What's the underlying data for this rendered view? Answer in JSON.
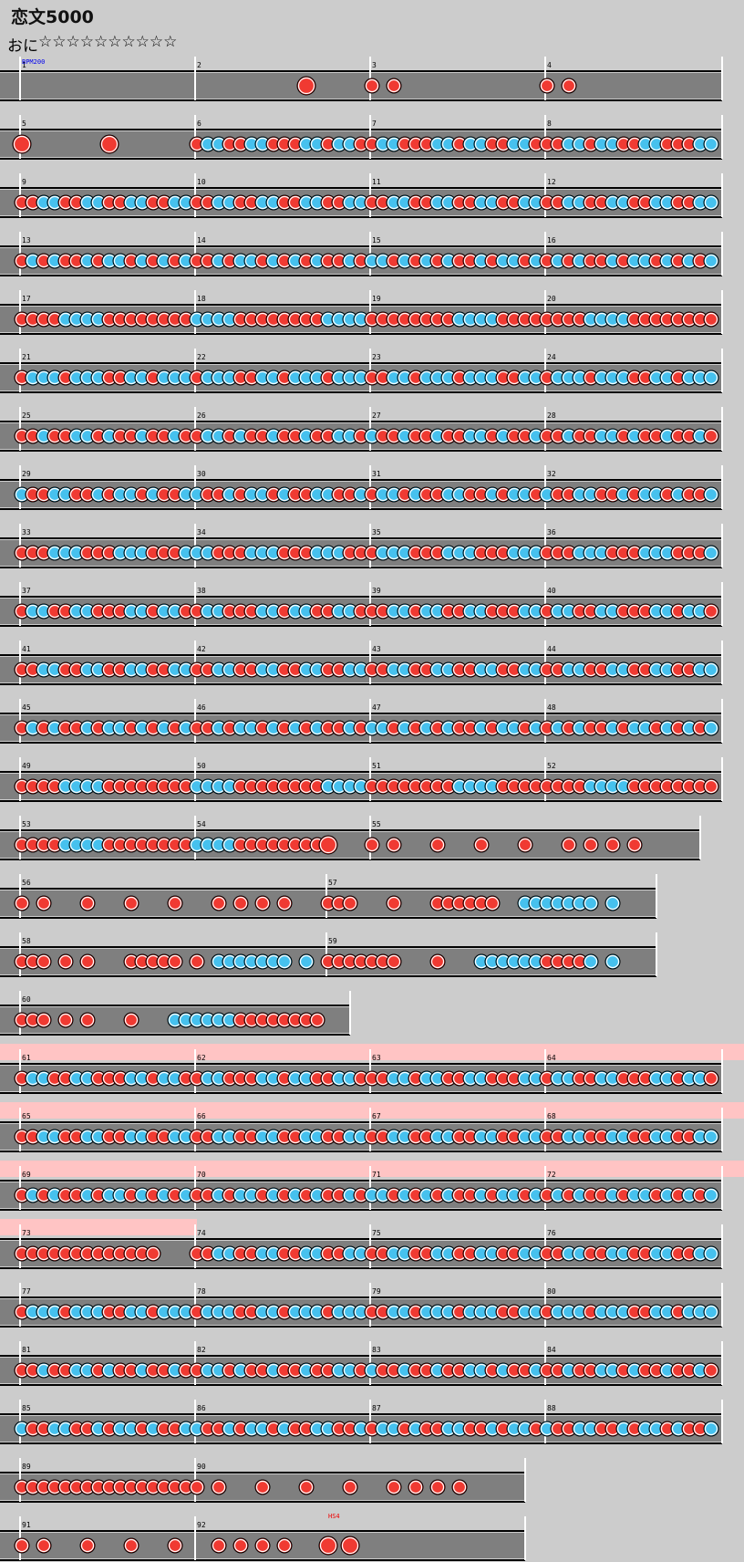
{
  "song": {
    "title": "恋文5000",
    "difficulty": "おに",
    "stars": "☆☆☆☆☆☆☆☆☆☆"
  },
  "colors": {
    "background": "#cccccc",
    "lane": "#7f7f7f",
    "lane_line": "#000000",
    "barline": "#ffffff",
    "gogo_band": "#ffc4c4",
    "don": "#f03a32",
    "ka": "#46c1ee",
    "note_outline": "#ffffff",
    "bpm_label": "#0000ee",
    "hs_label": "#ee0000",
    "measure_number": "#000000"
  },
  "chart_data": {
    "type": "taiko-score",
    "title": "恋文5000",
    "course": "おに",
    "level_stars": 10,
    "measure_range": [
      1,
      92
    ],
    "total_measures": 92,
    "annotations": [
      {
        "measure": 1,
        "text": "BPM200",
        "kind": "bpm"
      },
      {
        "measure": 92,
        "text": "HS4",
        "kind": "scroll"
      }
    ],
    "rows": [
      {
        "measures": [
          "1",
          "2",
          "3",
          "4"
        ],
        "gogo": false
      },
      {
        "measures": [
          "5",
          "6",
          "7",
          "8"
        ],
        "gogo": false
      },
      {
        "measures": [
          "9",
          "10",
          "11",
          "12"
        ],
        "gogo": false
      },
      {
        "measures": [
          "13",
          "14",
          "15",
          "16"
        ],
        "gogo": false
      },
      {
        "measures": [
          "17",
          "18",
          "19",
          "20"
        ],
        "gogo": false
      },
      {
        "measures": [
          "21",
          "22",
          "23",
          "24"
        ],
        "gogo": false
      },
      {
        "measures": [
          "25",
          "26",
          "27",
          "28"
        ],
        "gogo": false
      },
      {
        "measures": [
          "29",
          "30",
          "31",
          "32"
        ],
        "gogo": false
      },
      {
        "measures": [
          "33",
          "34",
          "35",
          "36"
        ],
        "gogo": false
      },
      {
        "measures": [
          "37",
          "38",
          "39",
          "40"
        ],
        "gogo": false
      },
      {
        "measures": [
          "41",
          "42",
          "43",
          "44"
        ],
        "gogo": false
      },
      {
        "measures": [
          "45",
          "46",
          "47",
          "48"
        ],
        "gogo": false
      },
      {
        "measures": [
          "49",
          "50",
          "51",
          "52"
        ],
        "gogo": false
      },
      {
        "measures": [
          "53",
          "54",
          "55"
        ],
        "gogo": false
      },
      {
        "measures": [
          "56",
          "57"
        ],
        "gogo": false
      },
      {
        "measures": [
          "58",
          "59"
        ],
        "gogo": false
      },
      {
        "measures": [
          "60"
        ],
        "gogo": false
      },
      {
        "measures": [
          "61",
          "62",
          "63",
          "64"
        ],
        "gogo": true
      },
      {
        "measures": [
          "65",
          "66",
          "67",
          "68"
        ],
        "gogo": true
      },
      {
        "measures": [
          "69",
          "70",
          "71",
          "72"
        ],
        "gogo": true
      },
      {
        "measures": [
          "73",
          "74",
          "75",
          "76"
        ],
        "gogo": "partial"
      },
      {
        "measures": [
          "77",
          "78",
          "79",
          "80"
        ],
        "gogo": false
      },
      {
        "measures": [
          "81",
          "82",
          "83",
          "84"
        ],
        "gogo": false
      },
      {
        "measures": [
          "85",
          "86",
          "87",
          "88"
        ],
        "gogo": false
      },
      {
        "measures": [
          "89",
          "90"
        ],
        "gogo": false
      },
      {
        "measures": [
          "91",
          "92"
        ],
        "gogo": false
      }
    ]
  }
}
